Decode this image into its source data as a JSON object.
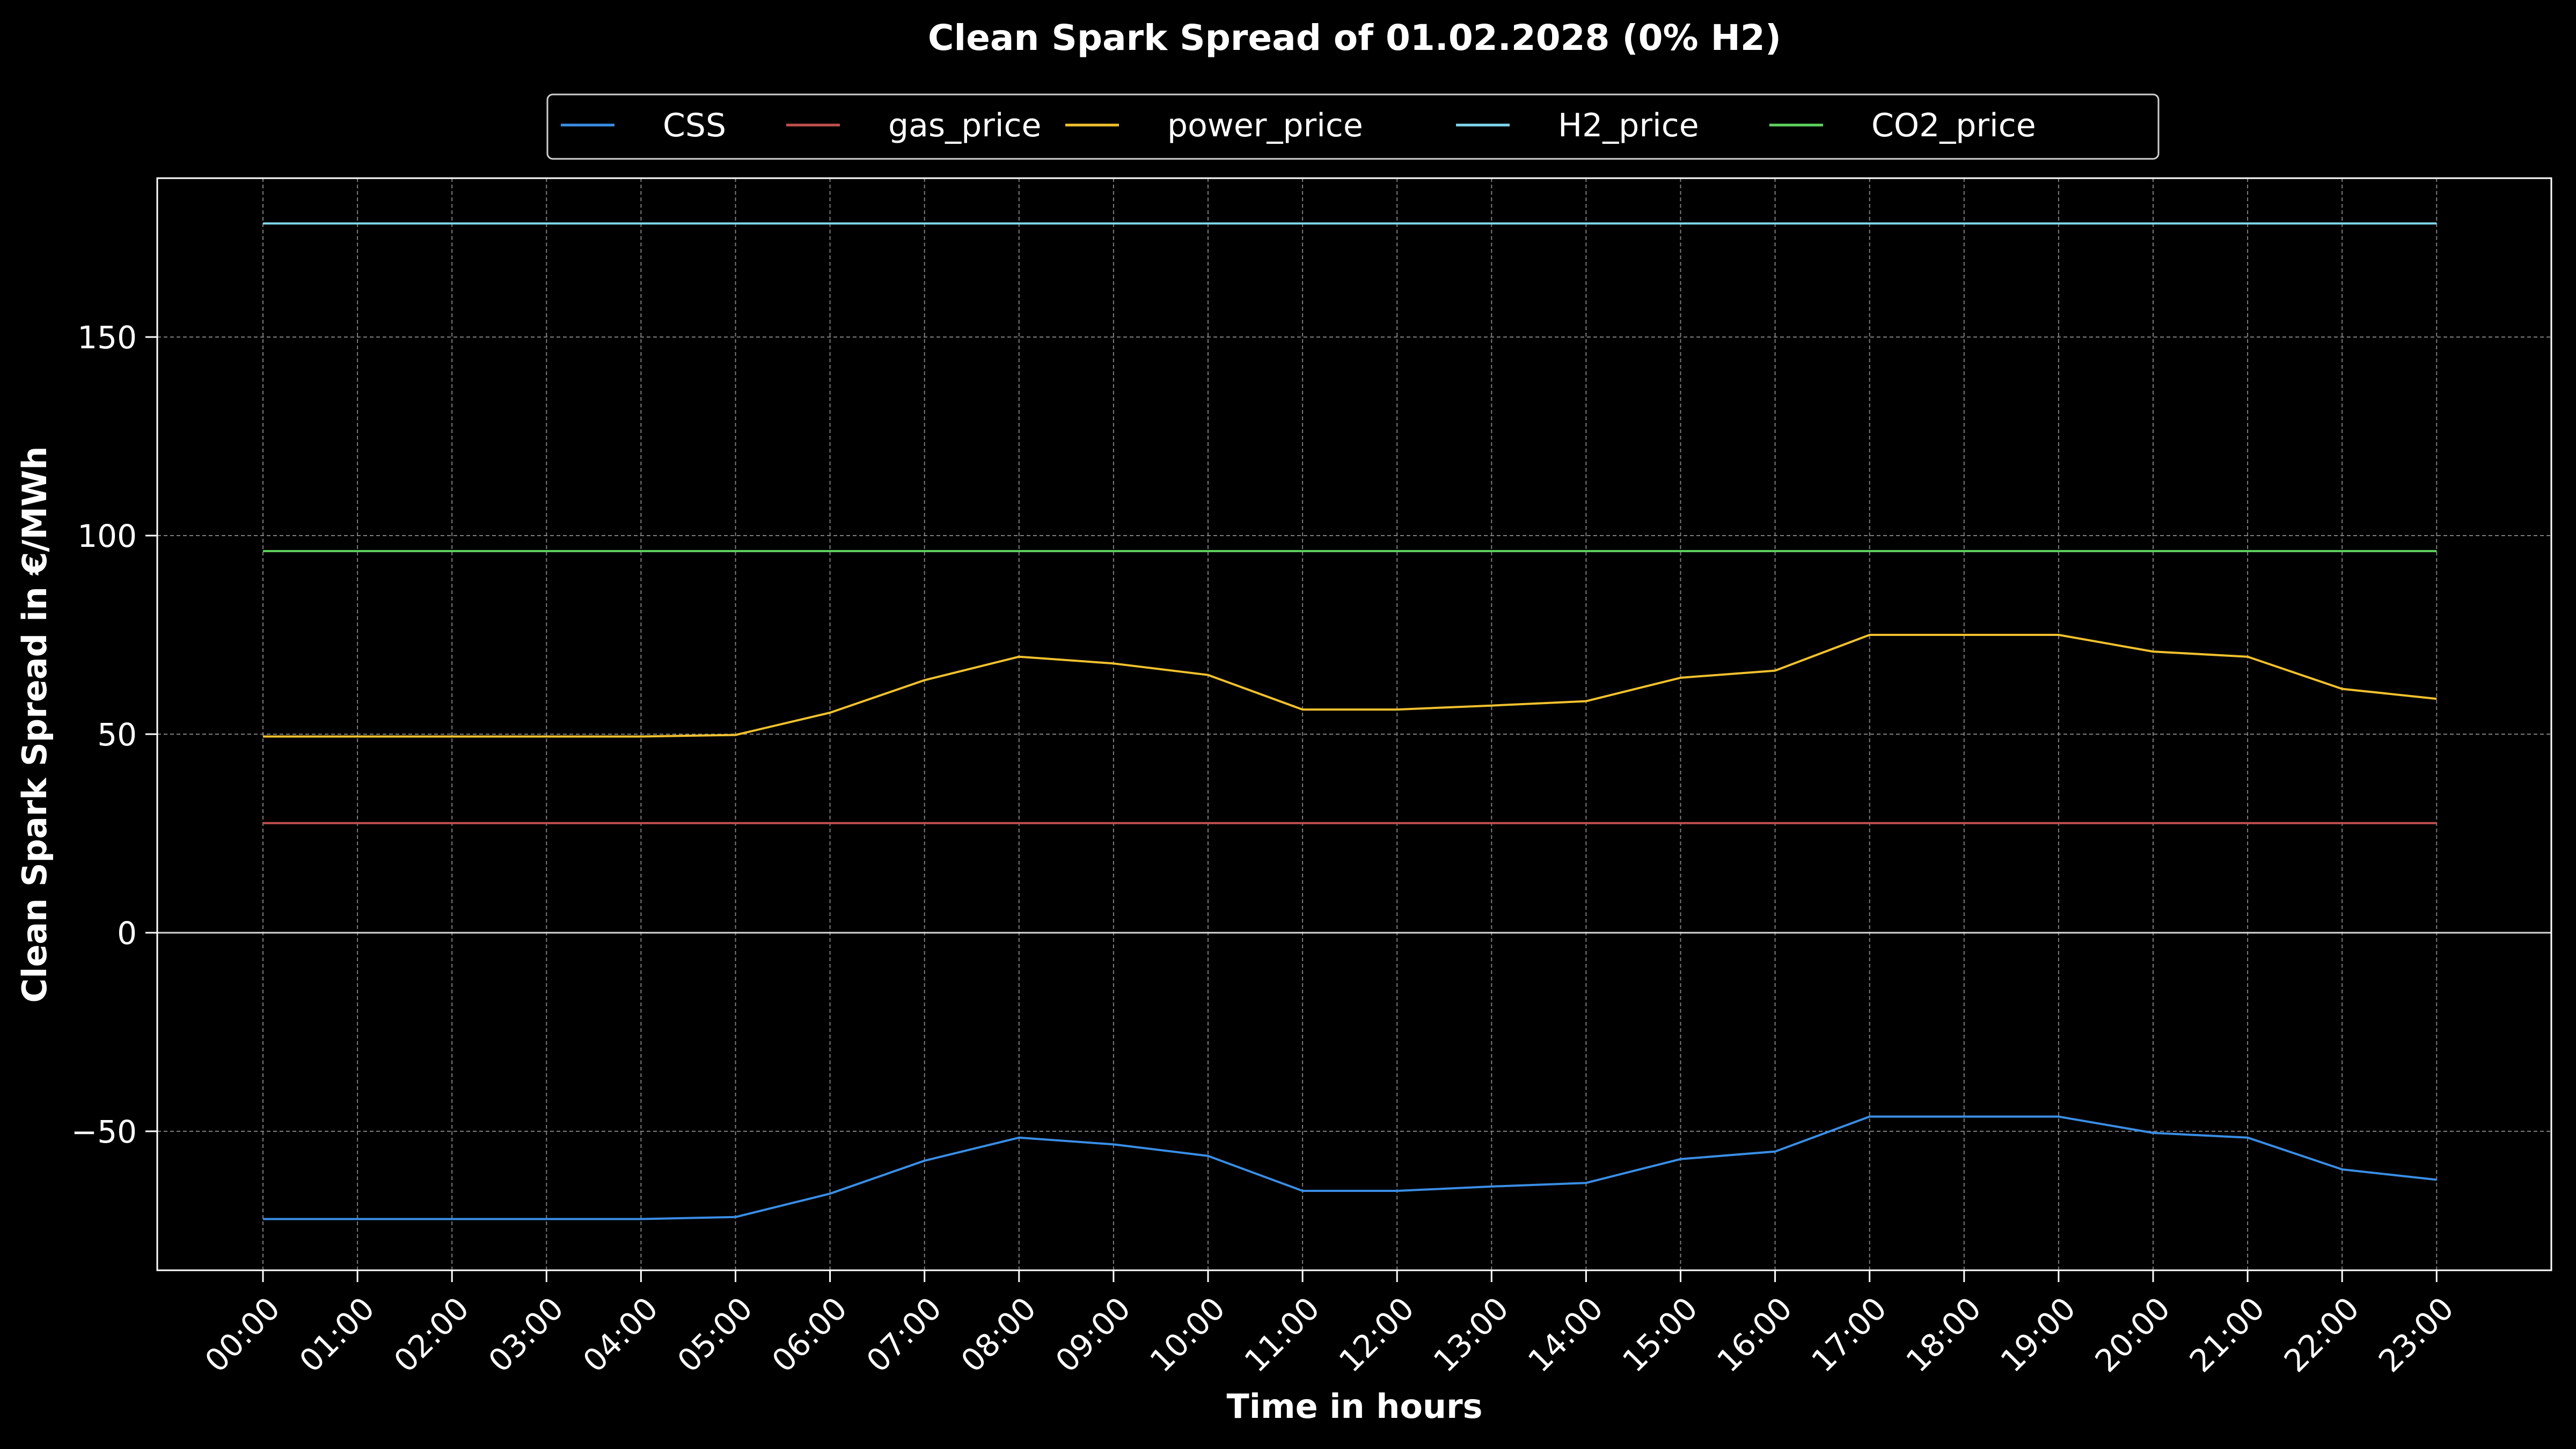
{
  "chart_data": {
    "type": "line",
    "title": "Clean Spark Spread of 01.02.2028 (0% H2)",
    "xlabel": "Time in hours",
    "ylabel": "Clean Spark Spread in €/MWh",
    "categories": [
      "00:00",
      "01:00",
      "02:00",
      "03:00",
      "04:00",
      "05:00",
      "06:00",
      "07:00",
      "08:00",
      "09:00",
      "10:00",
      "11:00",
      "12:00",
      "13:00",
      "14:00",
      "15:00",
      "16:00",
      "17:00",
      "18:00",
      "19:00",
      "20:00",
      "21:00",
      "22:00",
      "23:00"
    ],
    "ylim": [
      -85,
      190
    ],
    "yticks": [
      -50,
      0,
      50,
      100,
      150
    ],
    "ytick_labels": [
      "−50",
      "0",
      "50",
      "100",
      "150"
    ],
    "grid": true,
    "zero_line": true,
    "legend_position": "top-center, above plot, horizontal",
    "series": [
      {
        "name": "CSS",
        "color": "#3a8ee6",
        "values": [
          -72.1,
          -72.1,
          -72.1,
          -72.1,
          -72.1,
          -71.6,
          -65.7,
          -57.4,
          -51.6,
          -53.3,
          -56.2,
          -65.0,
          -65.0,
          -63.9,
          -63.0,
          -57.0,
          -55.1,
          -46.3,
          -46.3,
          -46.3,
          -50.4,
          -51.6,
          -59.6,
          -62.2
        ]
      },
      {
        "name": "gas_price",
        "color": "#c0504d",
        "values": [
          27.6,
          27.6,
          27.6,
          27.6,
          27.6,
          27.6,
          27.6,
          27.6,
          27.6,
          27.6,
          27.6,
          27.6,
          27.6,
          27.6,
          27.6,
          27.6,
          27.6,
          27.6,
          27.6,
          27.6,
          27.6,
          27.6,
          27.6,
          27.6
        ]
      },
      {
        "name": "power_price",
        "color": "#f2c12e",
        "values": [
          49.4,
          49.4,
          49.4,
          49.4,
          49.4,
          49.8,
          55.4,
          63.6,
          69.5,
          67.8,
          64.9,
          56.2,
          56.2,
          57.2,
          58.3,
          64.2,
          66.0,
          75.0,
          75.0,
          75.0,
          70.8,
          69.5,
          61.4,
          58.9
        ]
      },
      {
        "name": "H2_price",
        "color": "#7fd8ee",
        "values": [
          178.6,
          178.6,
          178.6,
          178.6,
          178.6,
          178.6,
          178.6,
          178.6,
          178.6,
          178.6,
          178.6,
          178.6,
          178.6,
          178.6,
          178.6,
          178.6,
          178.6,
          178.6,
          178.6,
          178.6,
          178.6,
          178.6,
          178.6,
          178.6
        ]
      },
      {
        "name": "CO2_price",
        "color": "#5fd35f",
        "values": [
          96.1,
          96.1,
          96.1,
          96.1,
          96.1,
          96.1,
          96.1,
          96.1,
          96.1,
          96.1,
          96.1,
          96.1,
          96.1,
          96.1,
          96.1,
          96.1,
          96.1,
          96.1,
          96.1,
          96.1,
          96.1,
          96.1,
          96.1,
          96.1
        ]
      }
    ]
  },
  "colors": {
    "background": "#000000",
    "text": "#ffffff",
    "axes": "#ffffff",
    "grid": "#8a8a8a"
  }
}
